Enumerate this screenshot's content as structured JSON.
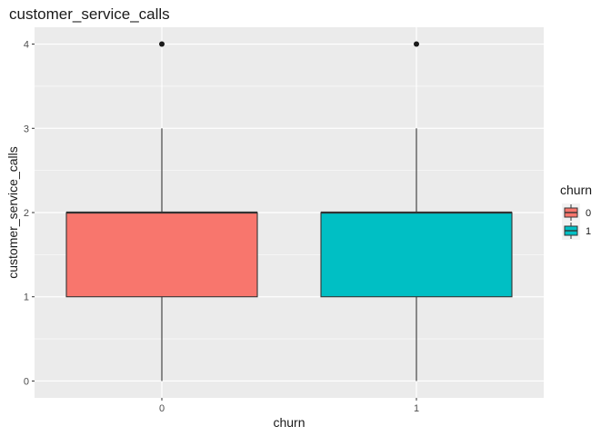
{
  "chart_data": {
    "type": "boxplot",
    "title": "customer_service_calls",
    "xlabel": "churn",
    "ylabel": "customer_service_calls",
    "categories": [
      "0",
      "1"
    ],
    "ylim": [
      -0.2,
      4.2
    ],
    "yticks": [
      0,
      1,
      2,
      3,
      4
    ],
    "yticklabels": [
      "0",
      "1",
      "2",
      "3",
      "4"
    ],
    "grid": true,
    "legend": {
      "title": "churn",
      "placement": "right",
      "entries": [
        "0",
        "1"
      ]
    },
    "series": [
      {
        "category": "0",
        "color": "#F8766D",
        "whisker_low": 0,
        "q1": 1,
        "median": 2,
        "q3": 2,
        "whisker_high": 3,
        "outliers": [
          4
        ]
      },
      {
        "category": "1",
        "color": "#00BFC4",
        "whisker_low": 0,
        "q1": 1,
        "median": 2,
        "q3": 2,
        "whisker_high": 3,
        "outliers": [
          4
        ]
      }
    ]
  }
}
